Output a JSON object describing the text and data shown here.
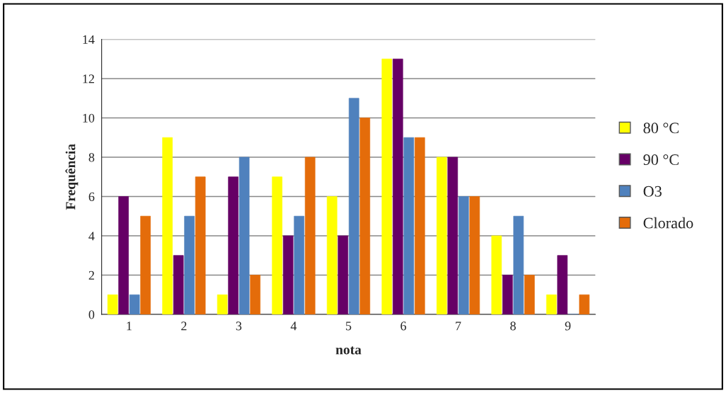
{
  "chart_data": {
    "type": "bar",
    "xlabel": "nota",
    "ylabel": "Frequência",
    "categories": [
      "1",
      "2",
      "3",
      "4",
      "5",
      "6",
      "7",
      "8",
      "9"
    ],
    "series": [
      {
        "name": "80 °C",
        "color": "#ffff00",
        "values": [
          1,
          9,
          1,
          7,
          6,
          13,
          8,
          4,
          1
        ]
      },
      {
        "name": "90 °C",
        "color": "#660066",
        "values": [
          6,
          3,
          7,
          4,
          4,
          13,
          8,
          2,
          3
        ]
      },
      {
        "name": "O3",
        "color": "#4f81bd",
        "values": [
          1,
          5,
          8,
          5,
          11,
          9,
          6,
          5,
          0
        ]
      },
      {
        "name": "Clorado",
        "color": "#e46c0a",
        "values": [
          5,
          7,
          2,
          8,
          10,
          9,
          6,
          2,
          1
        ]
      }
    ],
    "ylim": [
      0,
      14
    ],
    "yticks": [
      0,
      2,
      4,
      6,
      8,
      10,
      12,
      14
    ],
    "grid": "y",
    "legend": "right"
  }
}
